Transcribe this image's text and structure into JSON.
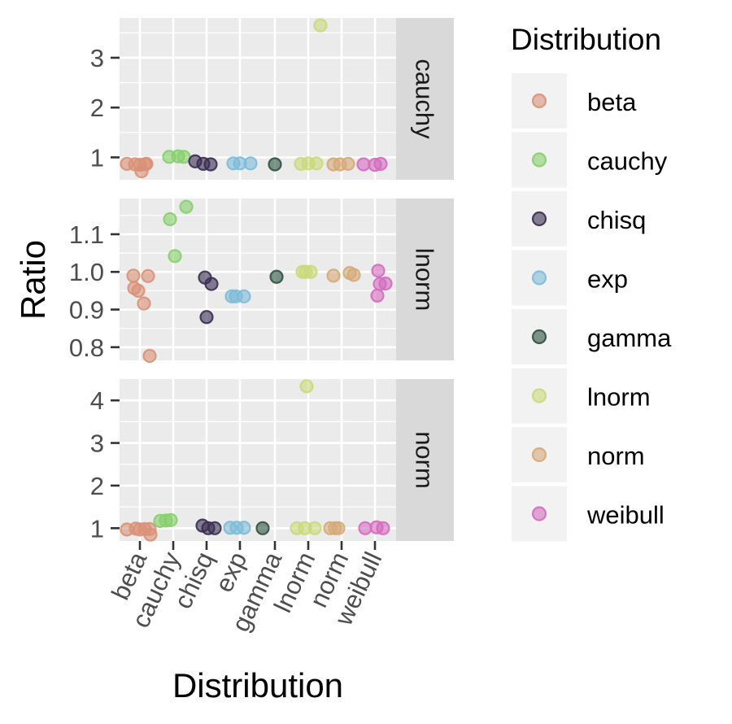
{
  "chart_data": {
    "type": "scatter",
    "xlabel": "Distribution",
    "ylabel": "Ratio",
    "categories": [
      "beta",
      "cauchy",
      "chisq",
      "exp",
      "gamma",
      "lnorm",
      "norm",
      "weibull"
    ],
    "legend": {
      "title": "Distribution",
      "position": "right",
      "entries": [
        "beta",
        "cauchy",
        "chisq",
        "exp",
        "gamma",
        "lnorm",
        "norm",
        "weibull"
      ]
    },
    "colors": {
      "beta": "#d99177",
      "cauchy": "#86cf6b",
      "chisq": "#3a2e52",
      "exp": "#7dbbd8",
      "gamma": "#2e5240",
      "lnorm": "#c9d97a",
      "norm": "#d5aa78",
      "weibull": "#d46bbf"
    },
    "panels": [
      {
        "facet": "cauchy",
        "ylim": [
          0.55,
          3.8
        ],
        "yticks": [
          1,
          2,
          3
        ],
        "points": [
          {
            "x": "beta",
            "y": 0.87
          },
          {
            "x": "beta",
            "y": 0.86
          },
          {
            "x": "beta",
            "y": 0.85
          },
          {
            "x": "beta",
            "y": 0.86
          },
          {
            "x": "beta",
            "y": 0.72
          },
          {
            "x": "beta",
            "y": 0.87
          },
          {
            "x": "cauchy",
            "y": 1.01
          },
          {
            "x": "cauchy",
            "y": 1.02
          },
          {
            "x": "cauchy",
            "y": 1.01
          },
          {
            "x": "chisq",
            "y": 0.92
          },
          {
            "x": "chisq",
            "y": 0.87
          },
          {
            "x": "chisq",
            "y": 0.86
          },
          {
            "x": "exp",
            "y": 0.88
          },
          {
            "x": "exp",
            "y": 0.88
          },
          {
            "x": "exp",
            "y": 0.88
          },
          {
            "x": "gamma",
            "y": 0.86
          },
          {
            "x": "lnorm",
            "y": 0.87
          },
          {
            "x": "lnorm",
            "y": 0.88
          },
          {
            "x": "lnorm",
            "y": 0.88
          },
          {
            "x": "lnorm",
            "y": 3.65
          },
          {
            "x": "norm",
            "y": 0.86
          },
          {
            "x": "norm",
            "y": 0.86
          },
          {
            "x": "norm",
            "y": 0.87
          },
          {
            "x": "weibull",
            "y": 0.86
          },
          {
            "x": "weibull",
            "y": 0.85
          },
          {
            "x": "weibull",
            "y": 0.87
          }
        ]
      },
      {
        "facet": "lnorm",
        "ylim": [
          0.765,
          1.195
        ],
        "yticks": [
          0.8,
          0.9,
          1.0,
          1.1
        ],
        "ytick_labels": [
          "0.8",
          "0.9",
          "1.0",
          "1.1"
        ],
        "points": [
          {
            "x": "beta",
            "y": 0.99
          },
          {
            "x": "beta",
            "y": 0.957
          },
          {
            "x": "beta",
            "y": 0.95
          },
          {
            "x": "beta",
            "y": 0.916
          },
          {
            "x": "beta",
            "y": 0.989
          },
          {
            "x": "beta",
            "y": 0.777
          },
          {
            "x": "cauchy",
            "y": 1.14
          },
          {
            "x": "cauchy",
            "y": 1.042
          },
          {
            "x": "cauchy",
            "y": 1.173
          },
          {
            "x": "chisq",
            "y": 0.985
          },
          {
            "x": "chisq",
            "y": 0.968
          },
          {
            "x": "chisq",
            "y": 0.88
          },
          {
            "x": "exp",
            "y": 0.935
          },
          {
            "x": "exp",
            "y": 0.935
          },
          {
            "x": "exp",
            "y": 0.935
          },
          {
            "x": "gamma",
            "y": 0.987
          },
          {
            "x": "lnorm",
            "y": 1.0
          },
          {
            "x": "lnorm",
            "y": 1.0
          },
          {
            "x": "lnorm",
            "y": 1.0
          },
          {
            "x": "norm",
            "y": 0.99
          },
          {
            "x": "norm",
            "y": 0.997
          },
          {
            "x": "norm",
            "y": 0.992
          },
          {
            "x": "weibull",
            "y": 1.003
          },
          {
            "x": "weibull",
            "y": 0.968
          },
          {
            "x": "weibull",
            "y": 0.937
          },
          {
            "x": "weibull",
            "y": 0.969
          }
        ]
      },
      {
        "facet": "norm",
        "ylim": [
          0.7,
          4.5
        ],
        "yticks": [
          1,
          2,
          3,
          4
        ],
        "points": [
          {
            "x": "beta",
            "y": 0.97
          },
          {
            "x": "beta",
            "y": 0.99
          },
          {
            "x": "beta",
            "y": 0.97
          },
          {
            "x": "beta",
            "y": 0.98
          },
          {
            "x": "beta",
            "y": 0.98
          },
          {
            "x": "beta",
            "y": 0.85
          },
          {
            "x": "cauchy",
            "y": 1.17
          },
          {
            "x": "cauchy",
            "y": 1.18
          },
          {
            "x": "cauchy",
            "y": 1.19
          },
          {
            "x": "chisq",
            "y": 1.06
          },
          {
            "x": "chisq",
            "y": 1.0
          },
          {
            "x": "chisq",
            "y": 1.0
          },
          {
            "x": "exp",
            "y": 1.01
          },
          {
            "x": "exp",
            "y": 1.01
          },
          {
            "x": "exp",
            "y": 1.01
          },
          {
            "x": "gamma",
            "y": 1.0
          },
          {
            "x": "lnorm",
            "y": 1.0
          },
          {
            "x": "lnorm",
            "y": 1.0
          },
          {
            "x": "lnorm",
            "y": 1.0
          },
          {
            "x": "lnorm",
            "y": 4.33
          },
          {
            "x": "norm",
            "y": 1.0
          },
          {
            "x": "norm",
            "y": 1.0
          },
          {
            "x": "norm",
            "y": 1.0
          },
          {
            "x": "weibull",
            "y": 1.0
          },
          {
            "x": "weibull",
            "y": 1.02
          },
          {
            "x": "weibull",
            "y": 1.0
          }
        ]
      }
    ]
  }
}
